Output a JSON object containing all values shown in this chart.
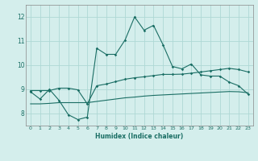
{
  "xlabel": "Humidex (Indice chaleur)",
  "xlim": [
    -0.5,
    23.5
  ],
  "ylim": [
    7.5,
    12.5
  ],
  "yticks": [
    8,
    9,
    10,
    11,
    12
  ],
  "xticks": [
    0,
    1,
    2,
    3,
    4,
    5,
    6,
    7,
    8,
    9,
    10,
    11,
    12,
    13,
    14,
    15,
    16,
    17,
    18,
    19,
    20,
    21,
    22,
    23
  ],
  "bg_color": "#d4eeec",
  "grid_color": "#aed8d5",
  "line_color": "#1a6e64",
  "line1_x": [
    0,
    1,
    2,
    3,
    4,
    5,
    6,
    7,
    8,
    9,
    10,
    11,
    12,
    13,
    14,
    15,
    16,
    17,
    18,
    19,
    20,
    21,
    22,
    23
  ],
  "line1_y": [
    8.9,
    8.6,
    9.0,
    8.55,
    7.95,
    7.75,
    7.85,
    10.7,
    10.45,
    10.45,
    11.05,
    12.0,
    11.45,
    11.65,
    10.85,
    9.95,
    9.85,
    10.05,
    9.6,
    9.55,
    9.55,
    9.3,
    9.15,
    8.8
  ],
  "line2_x": [
    0,
    1,
    2,
    3,
    4,
    5,
    6,
    7,
    8,
    9,
    10,
    11,
    12,
    13,
    14,
    15,
    16,
    17,
    18,
    19,
    20,
    21,
    22,
    23
  ],
  "line2_y": [
    8.95,
    8.95,
    8.95,
    9.05,
    9.05,
    8.98,
    8.4,
    9.15,
    9.22,
    9.32,
    9.42,
    9.48,
    9.52,
    9.57,
    9.62,
    9.62,
    9.63,
    9.67,
    9.72,
    9.77,
    9.82,
    9.87,
    9.82,
    9.72
  ],
  "line3_x": [
    0,
    1,
    2,
    3,
    4,
    5,
    6,
    7,
    8,
    9,
    10,
    11,
    12,
    13,
    14,
    15,
    16,
    17,
    18,
    19,
    20,
    21,
    22,
    23
  ],
  "line3_y": [
    8.4,
    8.4,
    8.42,
    8.45,
    8.45,
    8.45,
    8.45,
    8.5,
    8.55,
    8.6,
    8.65,
    8.68,
    8.72,
    8.75,
    8.77,
    8.79,
    8.81,
    8.83,
    8.85,
    8.87,
    8.89,
    8.91,
    8.9,
    8.86
  ]
}
